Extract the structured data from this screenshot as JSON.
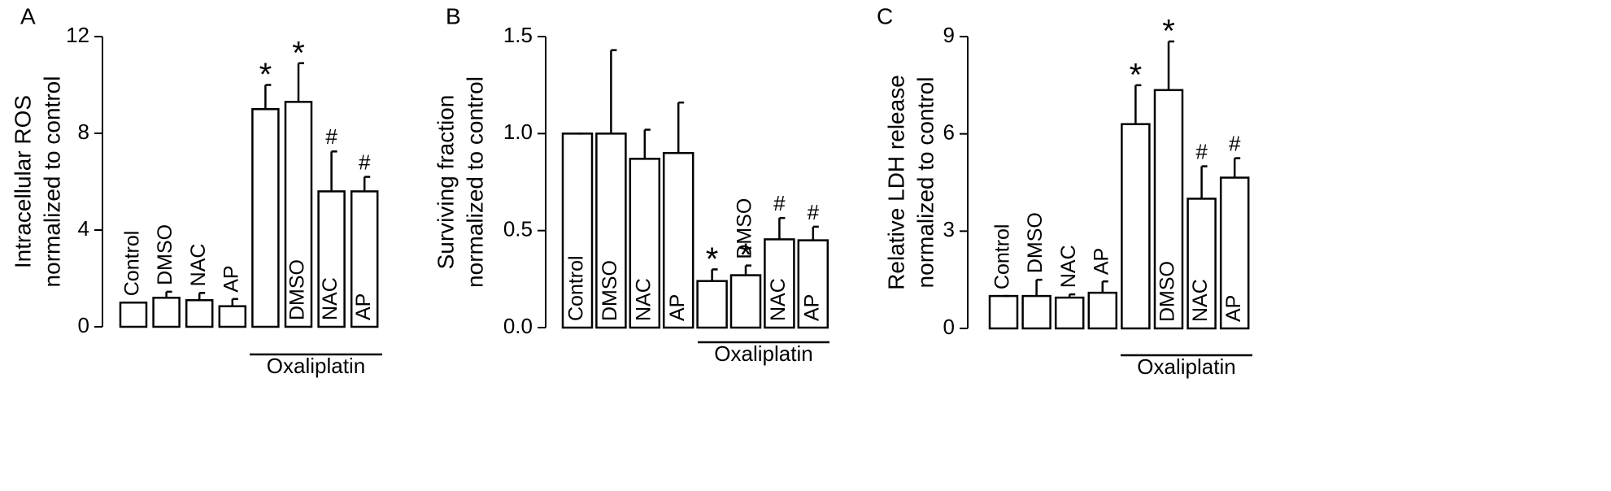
{
  "chart_data": [
    {
      "type": "bar",
      "panel": "A",
      "ylabel": [
        "Intracellular ROS",
        "normalized to control"
      ],
      "categories": [
        "Control",
        "DMSO",
        "NAC",
        "AP",
        null,
        "DMSO",
        "NAC",
        "AP"
      ],
      "values": [
        1.0,
        1.2,
        1.1,
        0.85,
        9.0,
        9.3,
        5.6,
        5.6
      ],
      "errors": [
        0.0,
        0.25,
        0.3,
        0.3,
        1.0,
        1.6,
        1.65,
        0.6
      ],
      "annotations": [
        null,
        null,
        null,
        null,
        "*",
        "*",
        "#",
        "#"
      ],
      "group_label": "Oxaliplatin",
      "color": "#ffffff",
      "ylim": [
        0,
        12
      ],
      "yticks": [
        0,
        4,
        8,
        12
      ]
    },
    {
      "type": "bar",
      "panel": "B",
      "ylabel": [
        "Surviving fraction",
        "normalized to control"
      ],
      "categories": [
        "Control",
        "DMSO",
        "NAC",
        "AP",
        null,
        "DMSO",
        "NAC",
        "AP"
      ],
      "values": [
        1.0,
        1.0,
        0.87,
        0.9,
        0.24,
        0.27,
        0.455,
        0.45
      ],
      "errors": [
        0.0,
        0.43,
        0.15,
        0.26,
        0.06,
        0.05,
        0.11,
        0.07
      ],
      "annotations": [
        null,
        null,
        null,
        null,
        "*",
        "*",
        "#",
        "#"
      ],
      "group_label": "Oxaliplatin",
      "color": "#ffffff",
      "ylim": [
        0,
        1.5
      ],
      "yticks": [
        {
          "value": 0,
          "label": "0.0"
        },
        0.5,
        {
          "value": 1,
          "label": "1.0"
        },
        1.5
      ]
    },
    {
      "type": "bar",
      "panel": "C",
      "ylabel": [
        "Relative LDH release",
        "normalized to control"
      ],
      "categories": [
        "Control",
        "DMSO",
        "NAC",
        "AP",
        null,
        "DMSO",
        "NAC",
        "AP"
      ],
      "values": [
        1.0,
        1.0,
        0.95,
        1.1,
        6.3,
        7.35,
        4.0,
        4.65
      ],
      "errors": [
        0.0,
        0.5,
        0.1,
        0.35,
        1.2,
        1.5,
        1.0,
        0.6
      ],
      "annotations": [
        null,
        null,
        null,
        null,
        "*",
        "*",
        "#",
        "#"
      ],
      "group_label": "Oxaliplatin",
      "color": "#ffffff",
      "ylim": [
        0,
        9
      ],
      "yticks": [
        0,
        3,
        6,
        9
      ]
    }
  ]
}
